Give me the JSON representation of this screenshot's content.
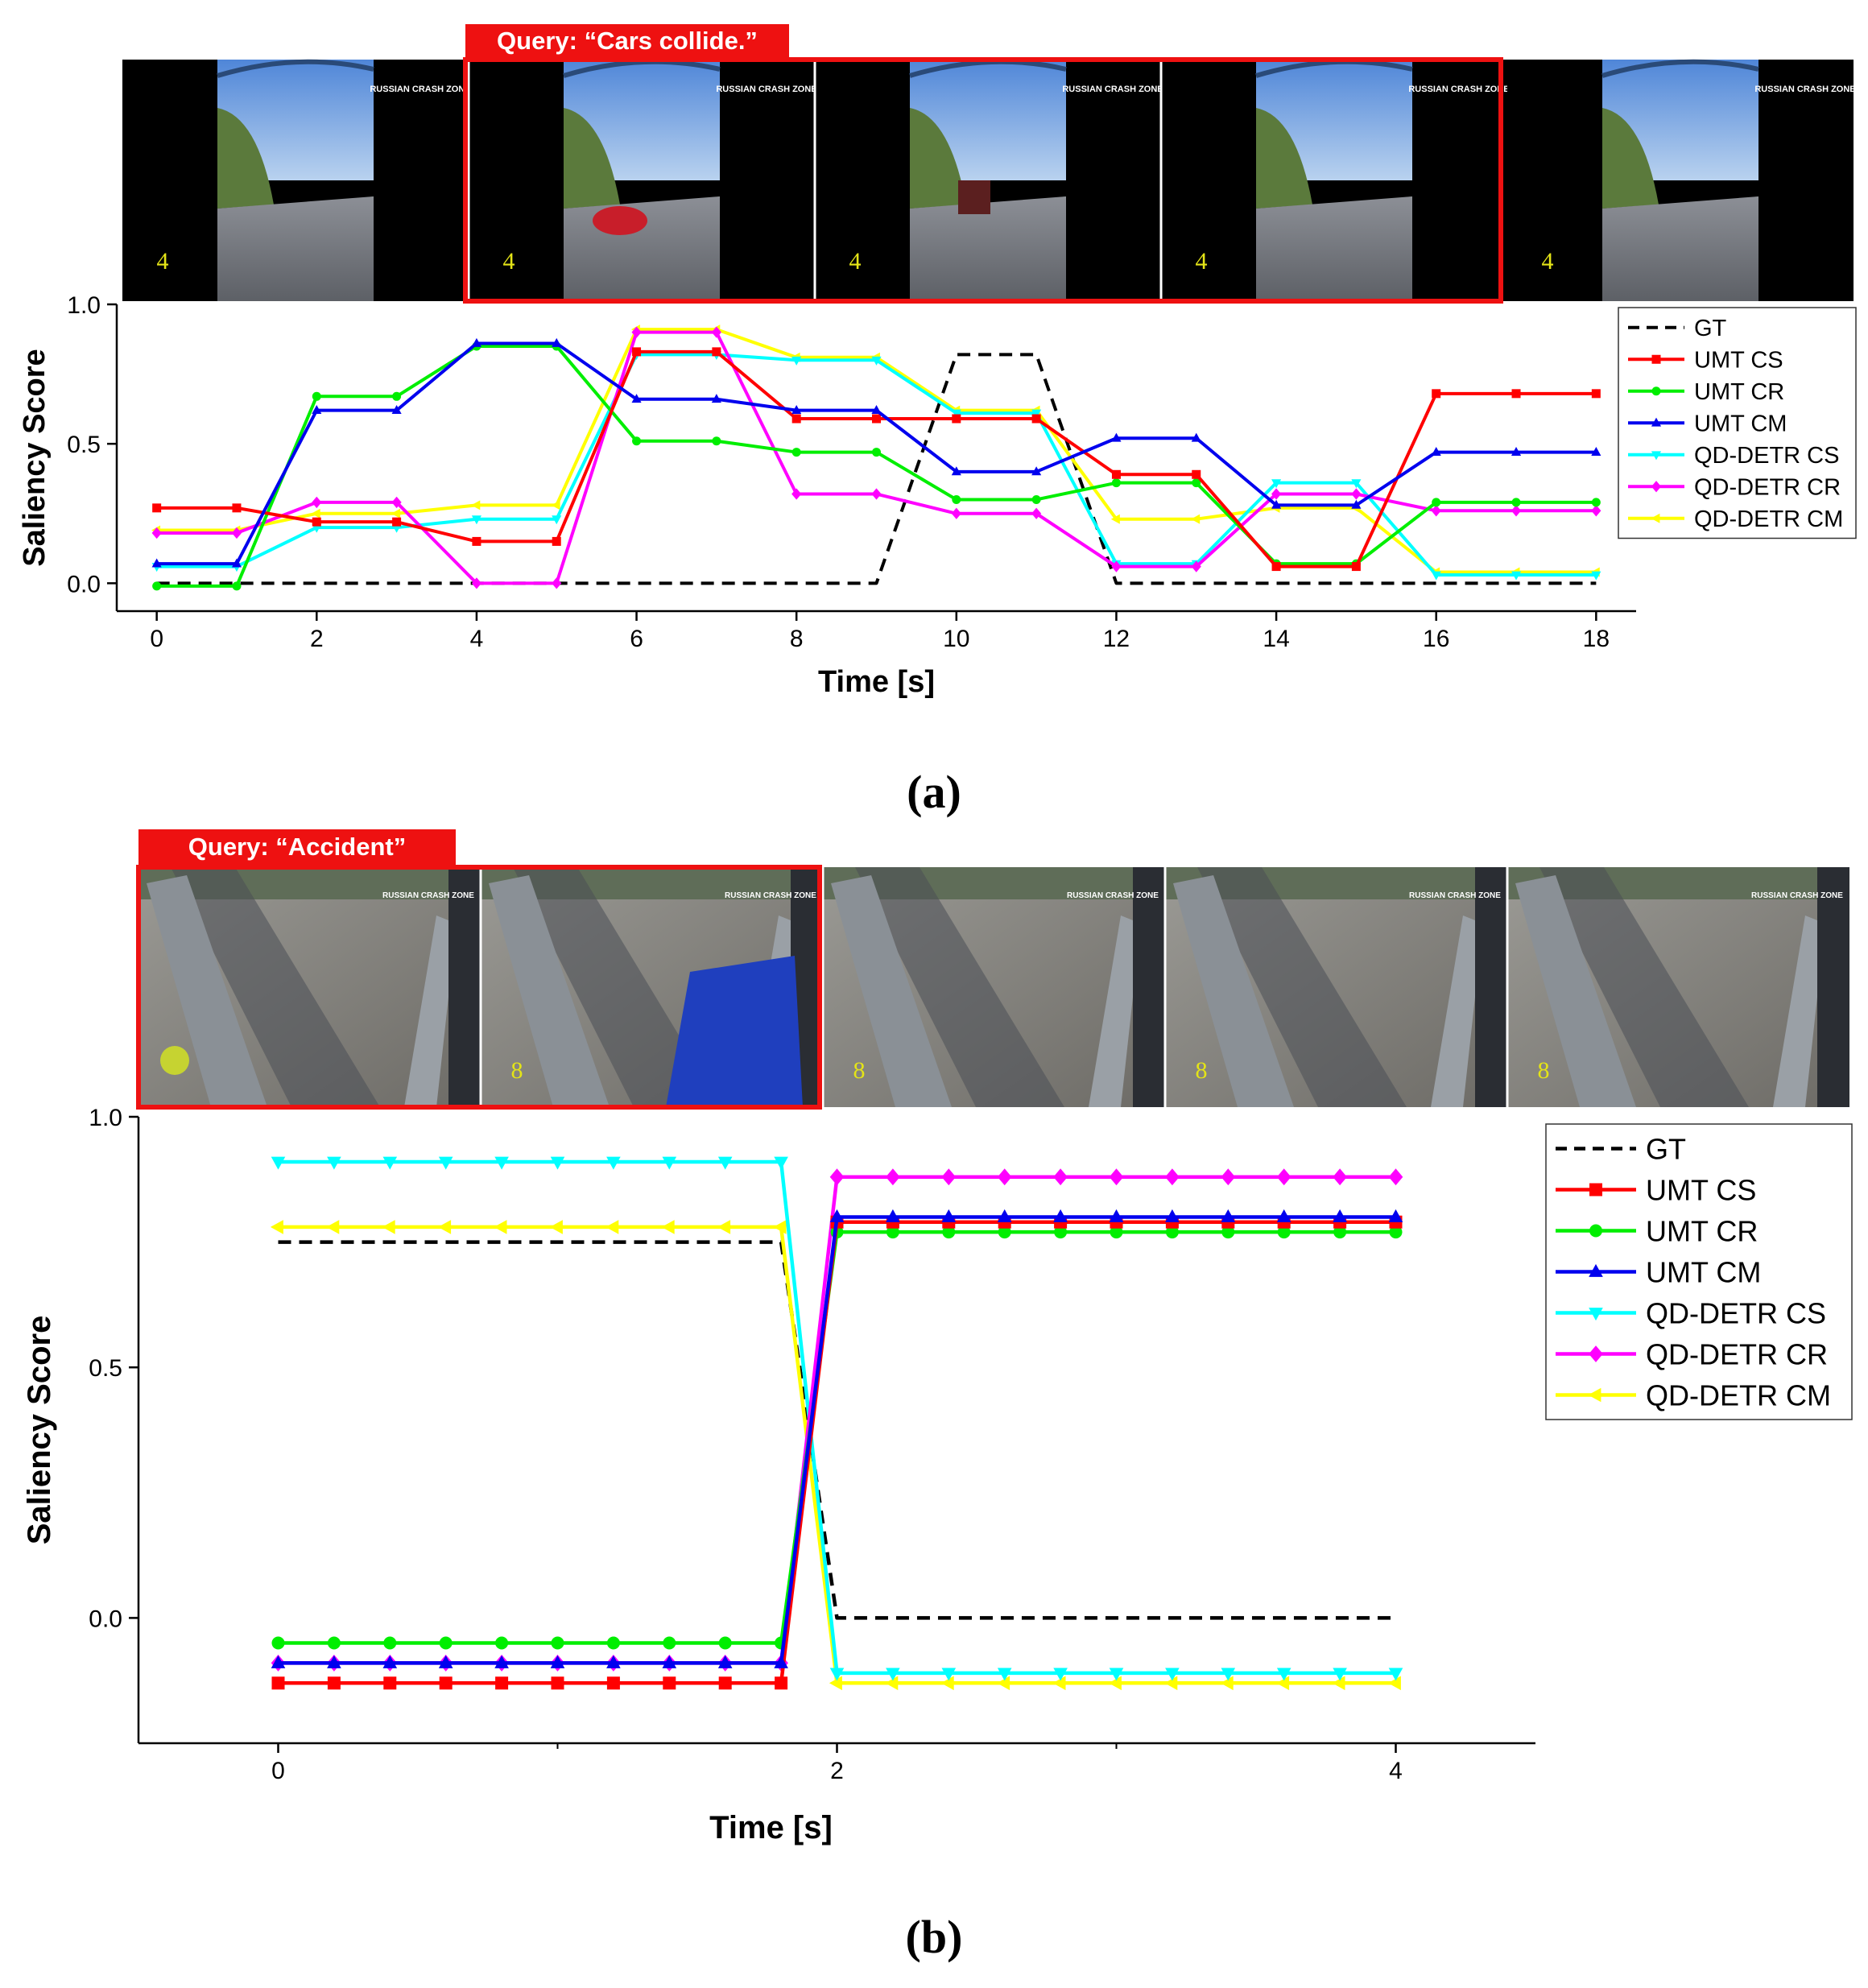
{
  "colors": {
    "GT": "#000000",
    "UMT CS": "#ff0000",
    "UMT CR": "#00ee00",
    "UMT CM": "#0000ee",
    "QD-DETR CS": "#00ffff",
    "QD-DETR CR": "#ff00ff",
    "QD-DETR CM": "#ffff00",
    "query_box": "#ee1111"
  },
  "panel_a": {
    "query_label": "Query: “Cars collide.”",
    "frames": [
      {
        "overlay_number": "4",
        "watermark": "RUSSIAN CRASH ZONE"
      },
      {
        "overlay_number": "4",
        "watermark": "RUSSIAN CRASH ZONE"
      },
      {
        "overlay_number": "4",
        "watermark": "RUSSIAN CRASH ZONE"
      },
      {
        "overlay_number": "4",
        "watermark": "RUSSIAN CRASH ZONE"
      },
      {
        "overlay_number": "4",
        "watermark": "RUSSIAN CRASH ZONE"
      }
    ],
    "caption": "(a)"
  },
  "panel_b": {
    "query_label": "Query: “Accident”",
    "frames": [
      {
        "overlay_number": "",
        "watermark": "RUSSIAN CRASH ZONE"
      },
      {
        "overlay_number": "8",
        "watermark": "RUSSIAN CRASH ZONE"
      },
      {
        "overlay_number": "8",
        "watermark": "RUSSIAN CRASH ZONE"
      },
      {
        "overlay_number": "8",
        "watermark": "RUSSIAN CRASH ZONE"
      },
      {
        "overlay_number": "8",
        "watermark": "RUSSIAN CRASH ZONE"
      }
    ],
    "caption": "(b)"
  },
  "chart_data": [
    {
      "type": "line",
      "panel": "a",
      "title": "",
      "xlabel": "Time [s]",
      "ylabel": "Saliency Score",
      "xlim": [
        -0.5,
        18.5
      ],
      "ylim": [
        -0.1,
        1.0
      ],
      "xticks": [
        "0",
        "2",
        "4",
        "6",
        "8",
        "10",
        "12",
        "14",
        "16",
        "18"
      ],
      "xtick_values": [
        0,
        2,
        4,
        6,
        8,
        10,
        12,
        14,
        16,
        18
      ],
      "yticks": [
        "0.0",
        "0.5",
        "1.0"
      ],
      "ytick_values": [
        0.0,
        0.5,
        1.0
      ],
      "legend_position": "top-right",
      "series": [
        {
          "name": "GT",
          "style": "dashed",
          "marker": "none",
          "x": [
            0,
            1,
            2,
            3,
            4,
            5,
            6,
            7,
            8,
            9,
            10,
            11,
            12,
            13,
            14,
            15,
            16,
            17,
            18
          ],
          "values": [
            0,
            0,
            0,
            0,
            0,
            0,
            0,
            0,
            0,
            0,
            0.82,
            0.82,
            0,
            0,
            0,
            0,
            0,
            0,
            0
          ]
        },
        {
          "name": "UMT CS",
          "marker": "square",
          "x": [
            0,
            1,
            2,
            3,
            4,
            5,
            6,
            7,
            8,
            9,
            10,
            11,
            12,
            13,
            14,
            15,
            16,
            17,
            18
          ],
          "values": [
            0.27,
            0.27,
            0.22,
            0.22,
            0.15,
            0.15,
            0.83,
            0.83,
            0.59,
            0.59,
            0.59,
            0.59,
            0.39,
            0.39,
            0.06,
            0.06,
            0.68,
            0.68,
            0.68
          ]
        },
        {
          "name": "UMT CR",
          "marker": "circle",
          "x": [
            0,
            1,
            2,
            3,
            4,
            5,
            6,
            7,
            8,
            9,
            10,
            11,
            12,
            13,
            14,
            15,
            16,
            17,
            18
          ],
          "values": [
            -0.01,
            -0.01,
            0.67,
            0.67,
            0.85,
            0.85,
            0.51,
            0.51,
            0.47,
            0.47,
            0.3,
            0.3,
            0.36,
            0.36,
            0.07,
            0.07,
            0.29,
            0.29,
            0.29
          ]
        },
        {
          "name": "UMT CM",
          "marker": "triangle-up",
          "x": [
            0,
            1,
            2,
            3,
            4,
            5,
            6,
            7,
            8,
            9,
            10,
            11,
            12,
            13,
            14,
            15,
            16,
            17,
            18
          ],
          "values": [
            0.07,
            0.07,
            0.62,
            0.62,
            0.86,
            0.86,
            0.66,
            0.66,
            0.62,
            0.62,
            0.4,
            0.4,
            0.52,
            0.52,
            0.28,
            0.28,
            0.47,
            0.47,
            0.47
          ]
        },
        {
          "name": "QD-DETR CS",
          "marker": "triangle-down",
          "x": [
            0,
            1,
            2,
            3,
            4,
            5,
            6,
            7,
            8,
            9,
            10,
            11,
            12,
            13,
            14,
            15,
            16,
            17,
            18
          ],
          "values": [
            0.06,
            0.06,
            0.2,
            0.2,
            0.23,
            0.23,
            0.82,
            0.82,
            0.8,
            0.8,
            0.61,
            0.61,
            0.07,
            0.07,
            0.36,
            0.36,
            0.03,
            0.03,
            0.03
          ]
        },
        {
          "name": "QD-DETR CR",
          "marker": "diamond",
          "x": [
            0,
            1,
            2,
            3,
            4,
            5,
            6,
            7,
            8,
            9,
            10,
            11,
            12,
            13,
            14,
            15,
            16,
            17,
            18
          ],
          "values": [
            0.18,
            0.18,
            0.29,
            0.29,
            0.0,
            0.0,
            0.9,
            0.9,
            0.32,
            0.32,
            0.25,
            0.25,
            0.06,
            0.06,
            0.32,
            0.32,
            0.26,
            0.26,
            0.26
          ]
        },
        {
          "name": "QD-DETR CM",
          "marker": "triangle-left",
          "x": [
            0,
            1,
            2,
            3,
            4,
            5,
            6,
            7,
            8,
            9,
            10,
            11,
            12,
            13,
            14,
            15,
            16,
            17,
            18
          ],
          "values": [
            0.19,
            0.19,
            0.25,
            0.25,
            0.28,
            0.28,
            0.91,
            0.91,
            0.81,
            0.81,
            0.62,
            0.62,
            0.23,
            0.23,
            0.27,
            0.27,
            0.04,
            0.04,
            0.04
          ]
        }
      ]
    },
    {
      "type": "line",
      "panel": "b",
      "title": "",
      "xlabel": "Time [s]",
      "ylabel": "Saliency Score",
      "xlim": [
        -0.5,
        4.5
      ],
      "ylim": [
        -0.25,
        1.0
      ],
      "xticks": [
        "0",
        "2",
        "4"
      ],
      "xtick_values": [
        0,
        2,
        4
      ],
      "minor_xticks": [
        1,
        3
      ],
      "yticks": [
        "0.0",
        "0.5",
        "1.0"
      ],
      "ytick_values": [
        0.0,
        0.5,
        1.0
      ],
      "legend_position": "top-right",
      "series": [
        {
          "name": "GT",
          "style": "dashed",
          "marker": "none",
          "x": [
            0,
            1.8,
            2,
            4
          ],
          "values": [
            0.75,
            0.75,
            0,
            0
          ]
        },
        {
          "name": "UMT CS",
          "marker": "square",
          "x": [
            0,
            0.2,
            0.4,
            0.6,
            0.8,
            1.0,
            1.2,
            1.4,
            1.6,
            1.8,
            2.0,
            2.2,
            2.4,
            2.6,
            2.8,
            3.0,
            3.2,
            3.4,
            3.6,
            3.8,
            4.0
          ],
          "values": [
            -0.13,
            -0.13,
            -0.13,
            -0.13,
            -0.13,
            -0.13,
            -0.13,
            -0.13,
            -0.13,
            -0.13,
            0.79,
            0.79,
            0.79,
            0.79,
            0.79,
            0.79,
            0.79,
            0.79,
            0.79,
            0.79,
            0.79
          ]
        },
        {
          "name": "UMT CR",
          "marker": "circle",
          "x": [
            0,
            0.2,
            0.4,
            0.6,
            0.8,
            1.0,
            1.2,
            1.4,
            1.6,
            1.8,
            2.0,
            2.2,
            2.4,
            2.6,
            2.8,
            3.0,
            3.2,
            3.4,
            3.6,
            3.8,
            4.0
          ],
          "values": [
            -0.05,
            -0.05,
            -0.05,
            -0.05,
            -0.05,
            -0.05,
            -0.05,
            -0.05,
            -0.05,
            -0.05,
            0.77,
            0.77,
            0.77,
            0.77,
            0.77,
            0.77,
            0.77,
            0.77,
            0.77,
            0.77,
            0.77
          ]
        },
        {
          "name": "UMT CM",
          "marker": "triangle-up",
          "x": [
            0,
            0.2,
            0.4,
            0.6,
            0.8,
            1.0,
            1.2,
            1.4,
            1.6,
            1.8,
            2.0,
            2.2,
            2.4,
            2.6,
            2.8,
            3.0,
            3.2,
            3.4,
            3.6,
            3.8,
            4.0
          ],
          "values": [
            -0.09,
            -0.09,
            -0.09,
            -0.09,
            -0.09,
            -0.09,
            -0.09,
            -0.09,
            -0.09,
            -0.09,
            0.8,
            0.8,
            0.8,
            0.8,
            0.8,
            0.8,
            0.8,
            0.8,
            0.8,
            0.8,
            0.8
          ]
        },
        {
          "name": "QD-DETR CS",
          "marker": "triangle-down",
          "x": [
            0,
            0.2,
            0.4,
            0.6,
            0.8,
            1.0,
            1.2,
            1.4,
            1.6,
            1.8,
            2.0,
            2.2,
            2.4,
            2.6,
            2.8,
            3.0,
            3.2,
            3.4,
            3.6,
            3.8,
            4.0
          ],
          "values": [
            0.91,
            0.91,
            0.91,
            0.91,
            0.91,
            0.91,
            0.91,
            0.91,
            0.91,
            0.91,
            -0.11,
            -0.11,
            -0.11,
            -0.11,
            -0.11,
            -0.11,
            -0.11,
            -0.11,
            -0.11,
            -0.11,
            -0.11
          ]
        },
        {
          "name": "QD-DETR CR",
          "marker": "diamond",
          "x": [
            0,
            0.2,
            0.4,
            0.6,
            0.8,
            1.0,
            1.2,
            1.4,
            1.6,
            1.8,
            2.0,
            2.2,
            2.4,
            2.6,
            2.8,
            3.0,
            3.2,
            3.4,
            3.6,
            3.8,
            4.0
          ],
          "values": [
            -0.09,
            -0.09,
            -0.09,
            -0.09,
            -0.09,
            -0.09,
            -0.09,
            -0.09,
            -0.09,
            -0.09,
            0.88,
            0.88,
            0.88,
            0.88,
            0.88,
            0.88,
            0.88,
            0.88,
            0.88,
            0.88,
            0.88
          ]
        },
        {
          "name": "QD-DETR CM",
          "marker": "triangle-left",
          "x": [
            0,
            0.2,
            0.4,
            0.6,
            0.8,
            1.0,
            1.2,
            1.4,
            1.6,
            1.8,
            2.0,
            2.2,
            2.4,
            2.6,
            2.8,
            3.0,
            3.2,
            3.4,
            3.6,
            3.8,
            4.0
          ],
          "values": [
            0.78,
            0.78,
            0.78,
            0.78,
            0.78,
            0.78,
            0.78,
            0.78,
            0.78,
            0.78,
            -0.13,
            -0.13,
            -0.13,
            -0.13,
            -0.13,
            -0.13,
            -0.13,
            -0.13,
            -0.13,
            -0.13,
            -0.13
          ]
        }
      ]
    }
  ]
}
